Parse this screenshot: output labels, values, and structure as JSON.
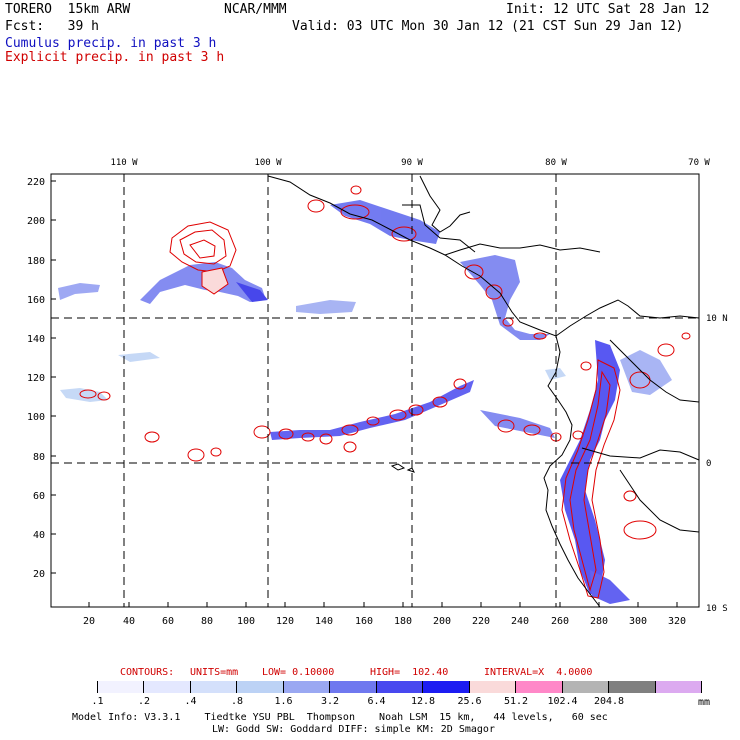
{
  "header": {
    "model": "TORERO  15km ARW",
    "org": "NCAR/MMM",
    "init": "Init: 12 UTC Sat 28 Jan 12",
    "fcst": "Fcst:   39 h",
    "valid": "Valid: 03 UTC Mon 30 Jan 12 (21 CST Sun 29 Jan 12)",
    "cumulus": "Cumulus precip. in past 3 h",
    "explicit": "Explicit precip. in past 3 h"
  },
  "map": {
    "lon_labels": [
      "110 W",
      "100 W",
      "90 W",
      "80 W",
      "70 W"
    ],
    "lat_labels": [
      "10 N",
      "0",
      "10 S"
    ],
    "y_ticks": [
      "220",
      "200",
      "180",
      "160",
      "140",
      "120",
      "100",
      "80",
      "60",
      "40",
      "20"
    ],
    "x_ticks": [
      "20",
      "40",
      "60",
      "80",
      "100",
      "120",
      "140",
      "160",
      "180",
      "200",
      "220",
      "240",
      "260",
      "280",
      "300",
      "320"
    ]
  },
  "contours_line": {
    "label": "CONTOURS:",
    "units": "UNITS=mm",
    "low": "LOW= 0.10000",
    "high": "HIGH=  102.40",
    "interval": "INTERVAL=X  4.0000"
  },
  "legend": {
    "colors": [
      "#ffffff",
      "#f2f2ff",
      "#e4e8ff",
      "#d4e0fb",
      "#bcd2f5",
      "#9aa8f2",
      "#6f78ef",
      "#4848ef",
      "#1c1cf2",
      "#fadada",
      "#ff88c8",
      "#b4b4b4",
      "#808080",
      "#dcaaf0"
    ],
    "labels": [
      ".1",
      ".2",
      ".4",
      ".8",
      "1.6",
      "3.2",
      "6.4",
      "12.8",
      "25.6",
      "51.2",
      "102.4",
      "204.8"
    ],
    "unit": "mm"
  },
  "footer": {
    "line1": "Model Info: V3.3.1    Tiedtke YSU PBL  Thompson    Noah LSM  15 km,   44 levels,   60 sec",
    "line2": "LW: Godd SW: Goddard DIFF: simple KM: 2D Smagor"
  }
}
